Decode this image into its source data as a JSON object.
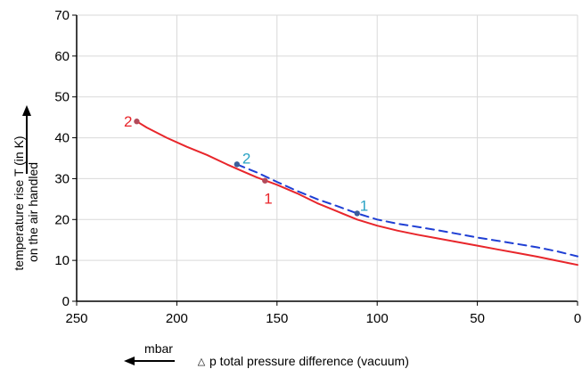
{
  "chart_data": {
    "type": "line",
    "xlabel": "p total pressure difference (vacuum)",
    "xlabel_symbol": "△",
    "xunit": "mbar",
    "ylabel_line1": "temperature rise T (in K)",
    "ylabel_line2": "on the air handled",
    "xlim": [
      250,
      0
    ],
    "ylim": [
      0,
      70
    ],
    "x_ticks": [
      "250",
      "200",
      "150",
      "100",
      "50",
      "0"
    ],
    "y_ticks": [
      "0",
      "10",
      "20",
      "30",
      "40",
      "50",
      "60",
      "70"
    ],
    "grid": true,
    "series": [
      {
        "style": "solid",
        "color": "#e8262b",
        "x": [
          220,
          215,
          205,
          195,
          185,
          175,
          168,
          160,
          150,
          140,
          130,
          120,
          110,
          100,
          90,
          80,
          70,
          60,
          50,
          40,
          30,
          20,
          10,
          0
        ],
        "y": [
          44,
          42.5,
          40,
          37.8,
          35.8,
          33.5,
          32,
          30.3,
          28.5,
          26.4,
          24,
          22,
          20,
          18.5,
          17.3,
          16.3,
          15.4,
          14.5,
          13.6,
          12.7,
          11.8,
          10.9,
          9.9,
          8.9
        ],
        "markers": [
          {
            "x": 220,
            "y": 44,
            "label": "2"
          },
          {
            "x": 156,
            "y": 29.5,
            "label": "1"
          }
        ]
      },
      {
        "style": "dashed",
        "color": "#1f3fd4",
        "x": [
          170,
          160,
          150,
          140,
          130,
          120,
          110,
          100,
          90,
          80,
          70,
          60,
          50,
          40,
          30,
          20,
          10,
          0
        ],
        "y": [
          33.5,
          31.5,
          29.2,
          27,
          25,
          23.3,
          21.5,
          20,
          19,
          18.2,
          17.4,
          16.5,
          15.6,
          14.8,
          14,
          13.2,
          12.2,
          11
        ],
        "markers": [
          {
            "x": 170,
            "y": 33.5,
            "label": "2"
          },
          {
            "x": 110,
            "y": 21.5,
            "label": "1"
          }
        ]
      }
    ],
    "colors": {
      "marker": "#b34a5a",
      "blue_marker": "#3a5d9a",
      "blue_label": "#2aa3c4",
      "grid": "#d9d9d9",
      "axis": "#000000"
    }
  }
}
